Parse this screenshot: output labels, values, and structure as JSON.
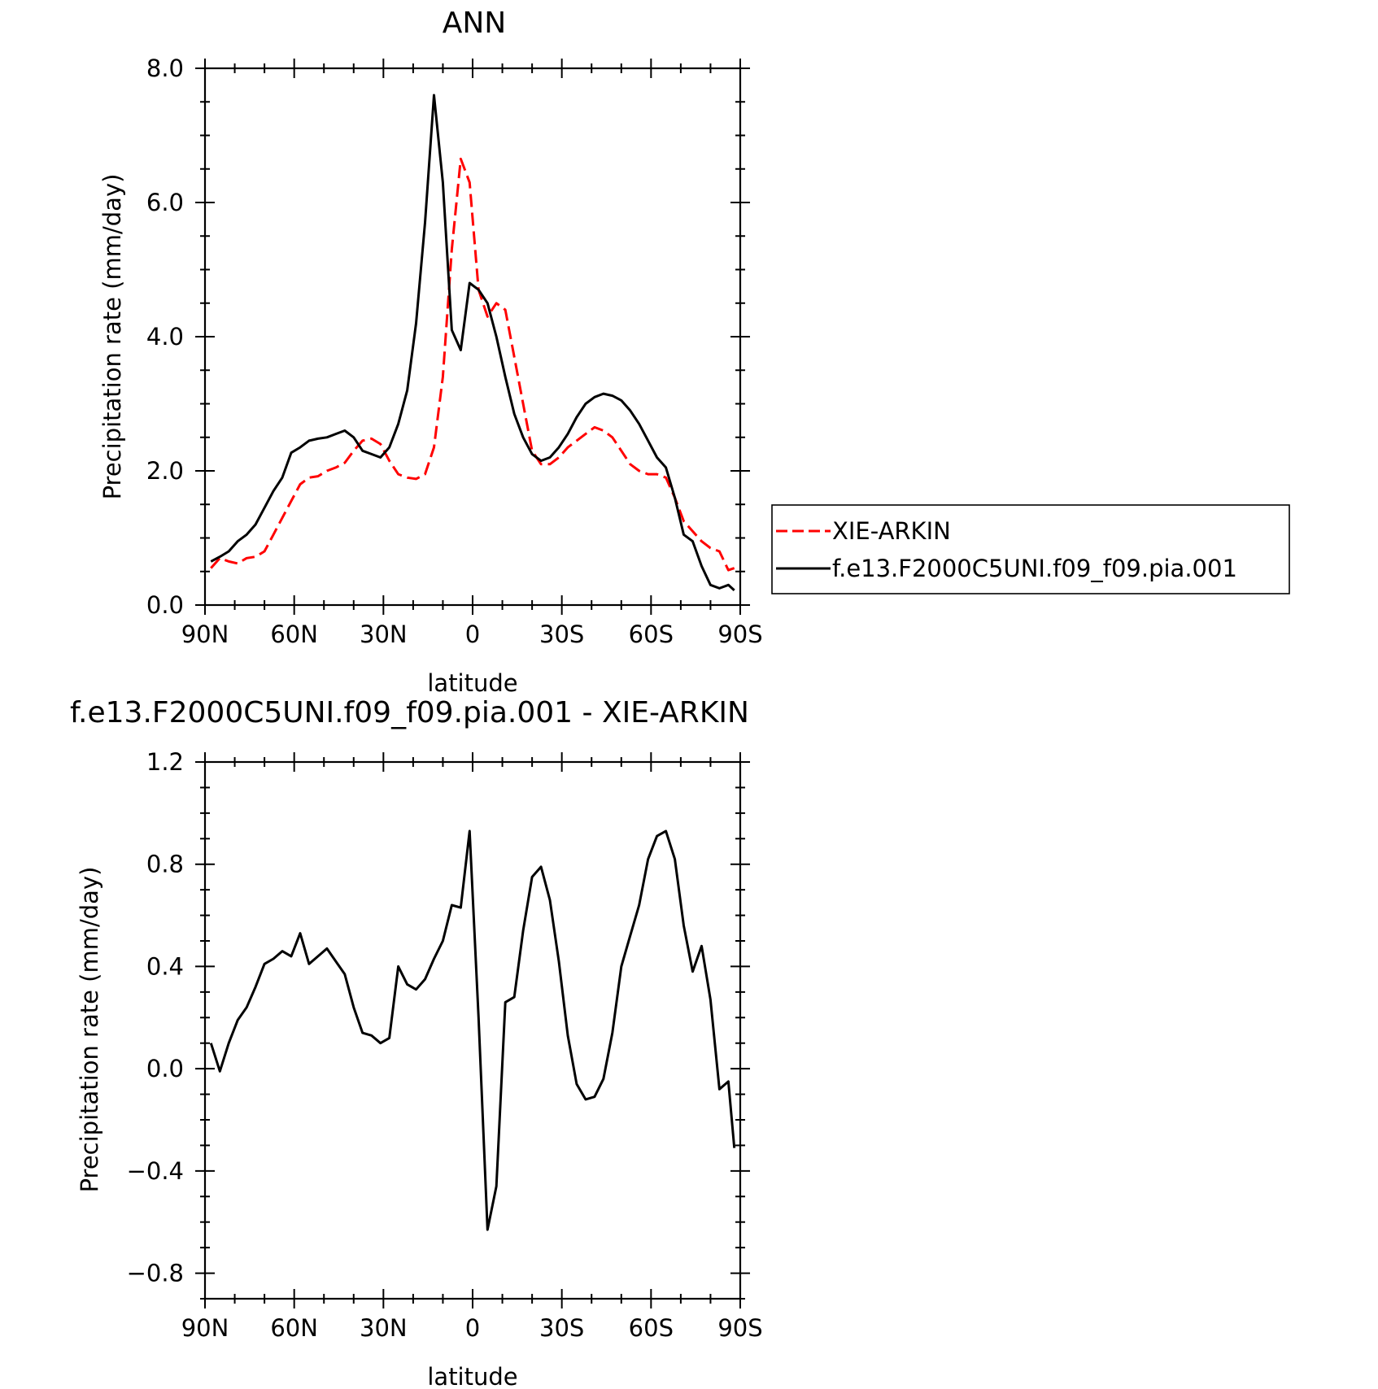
{
  "chart_data": [
    {
      "type": "line",
      "title": "ANN",
      "xlabel": "latitude",
      "ylabel": "Precipitation rate (mm/day)",
      "xlim": [
        90,
        -90
      ],
      "ylim": [
        0.0,
        8.0
      ],
      "yticks": [
        0.0,
        2.0,
        4.0,
        6.0,
        8.0
      ],
      "ytick_labels": [
        "0.0",
        "2.0",
        "4.0",
        "6.0",
        "8.0"
      ],
      "xticks": [
        90,
        60,
        30,
        0,
        -30,
        -60,
        -90
      ],
      "xtick_labels": [
        "90N",
        "60N",
        "30N",
        "0",
        "30S",
        "60S",
        "90S"
      ],
      "grid": false,
      "legend_position": "right",
      "series": [
        {
          "name": "XIE-ARKIN",
          "color": "#ff0000",
          "dash": "dashed",
          "x": [
            88,
            85,
            82,
            79,
            76,
            73,
            70,
            67,
            64,
            61,
            58,
            55,
            52,
            49,
            46,
            43,
            40,
            37,
            34,
            31,
            28,
            25,
            22,
            19,
            16,
            13,
            10,
            7,
            4,
            1,
            -2,
            -5,
            -8,
            -11,
            -14,
            -17,
            -20,
            -23,
            -26,
            -29,
            -32,
            -35,
            -38,
            -41,
            -44,
            -47,
            -50,
            -53,
            -56,
            -59,
            -62,
            -65,
            -68,
            -71,
            -74,
            -77,
            -80,
            -83,
            -86,
            -88
          ],
          "y": [
            0.55,
            0.7,
            0.65,
            0.62,
            0.7,
            0.72,
            0.8,
            1.05,
            1.3,
            1.55,
            1.8,
            1.9,
            1.92,
            2.0,
            2.05,
            2.12,
            2.3,
            2.45,
            2.48,
            2.4,
            2.15,
            1.95,
            1.9,
            1.88,
            1.95,
            2.35,
            3.4,
            5.3,
            6.65,
            6.3,
            4.7,
            4.3,
            4.5,
            4.4,
            3.7,
            3.0,
            2.3,
            2.1,
            2.1,
            2.2,
            2.35,
            2.45,
            2.55,
            2.65,
            2.6,
            2.5,
            2.3,
            2.1,
            2.0,
            1.95,
            1.95,
            1.9,
            1.6,
            1.25,
            1.1,
            0.95,
            0.85,
            0.8,
            0.52,
            0.55
          ]
        },
        {
          "name": "f.e13.F2000C5UNI.f09_f09.pia.001",
          "color": "#000000",
          "dash": "solid",
          "x": [
            88,
            85,
            82,
            79,
            76,
            73,
            70,
            67,
            64,
            61,
            58,
            55,
            52,
            49,
            46,
            43,
            40,
            37,
            34,
            31,
            28,
            25,
            22,
            19,
            16,
            13,
            10,
            7,
            4,
            1,
            -2,
            -5,
            -8,
            -11,
            -14,
            -17,
            -20,
            -23,
            -26,
            -29,
            -32,
            -35,
            -38,
            -41,
            -44,
            -47,
            -50,
            -53,
            -56,
            -59,
            -62,
            -65,
            -68,
            -71,
            -74,
            -77,
            -80,
            -83,
            -86,
            -88
          ],
          "y": [
            0.65,
            0.72,
            0.8,
            0.95,
            1.05,
            1.2,
            1.45,
            1.7,
            1.9,
            2.27,
            2.35,
            2.45,
            2.48,
            2.5,
            2.55,
            2.6,
            2.5,
            2.3,
            2.25,
            2.2,
            2.35,
            2.7,
            3.2,
            4.2,
            5.7,
            7.6,
            6.3,
            4.1,
            3.8,
            4.8,
            4.7,
            4.5,
            4.0,
            3.4,
            2.85,
            2.5,
            2.25,
            2.15,
            2.2,
            2.35,
            2.55,
            2.8,
            3.0,
            3.1,
            3.15,
            3.12,
            3.05,
            2.9,
            2.7,
            2.45,
            2.2,
            2.05,
            1.6,
            1.05,
            0.95,
            0.58,
            0.3,
            0.25,
            0.3,
            0.22
          ]
        }
      ]
    },
    {
      "type": "line",
      "title": "f.e13.F2000C5UNI.f09_f09.pia.001 - XIE-ARKIN",
      "xlabel": "latitude",
      "ylabel": "Precipitation rate (mm/day)",
      "xlim": [
        90,
        -90
      ],
      "ylim": [
        -0.9,
        1.2
      ],
      "yticks": [
        -0.8,
        -0.4,
        0.0,
        0.4,
        0.8,
        1.2
      ],
      "ytick_labels": [
        "-0.8",
        "-0.4",
        "0.0",
        "0.4",
        "0.8",
        "1.2"
      ],
      "xticks": [
        90,
        60,
        30,
        0,
        -30,
        -60,
        -90
      ],
      "xtick_labels": [
        "90N",
        "60N",
        "30N",
        "0",
        "30S",
        "60S",
        "90S"
      ],
      "grid": false,
      "series": [
        {
          "color": "#000000",
          "dash": "solid",
          "x": [
            88,
            85,
            82,
            79,
            76,
            73,
            70,
            67,
            64,
            61,
            58,
            55,
            52,
            49,
            46,
            43,
            40,
            37,
            34,
            31,
            28,
            25,
            22,
            19,
            16,
            13,
            10,
            7,
            4,
            1,
            -2,
            -5,
            -8,
            -11,
            -14,
            -17,
            -20,
            -23,
            -26,
            -29,
            -32,
            -35,
            -38,
            -41,
            -44,
            -47,
            -50,
            -53,
            -56,
            -59,
            -62,
            -65,
            -68,
            -71,
            -74,
            -77,
            -80,
            -83,
            -86,
            -88
          ],
          "y": [
            0.1,
            -0.01,
            0.1,
            0.19,
            0.24,
            0.32,
            0.41,
            0.43,
            0.46,
            0.44,
            0.53,
            0.41,
            0.44,
            0.47,
            0.42,
            0.37,
            0.24,
            0.14,
            0.13,
            0.1,
            0.12,
            0.4,
            0.33,
            0.31,
            0.35,
            0.43,
            0.5,
            0.64,
            0.63,
            0.93,
            0.2,
            -0.63,
            -0.46,
            0.26,
            0.28,
            0.54,
            0.75,
            0.79,
            0.66,
            0.42,
            0.13,
            -0.06,
            -0.12,
            -0.11,
            -0.04,
            0.14,
            0.4,
            0.52,
            0.64,
            0.82,
            0.91,
            0.93,
            0.82,
            0.56,
            0.38,
            0.48,
            0.27,
            -0.08,
            -0.05,
            -0.31
          ]
        }
      ]
    }
  ],
  "legend": {
    "items": [
      {
        "label": "XIE-ARKIN",
        "color": "#ff0000",
        "dash": "dashed"
      },
      {
        "label": "f.e13.F2000C5UNI.f09_f09.pia.001",
        "color": "#000000",
        "dash": "solid"
      }
    ]
  }
}
